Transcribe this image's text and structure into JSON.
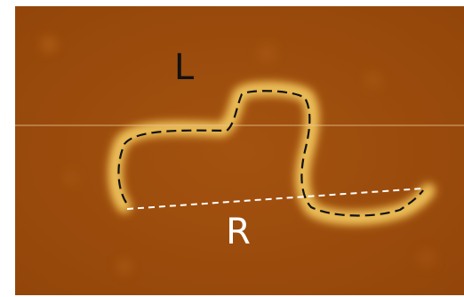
{
  "labels": {
    "top": "L",
    "bottom": "R"
  }
}
